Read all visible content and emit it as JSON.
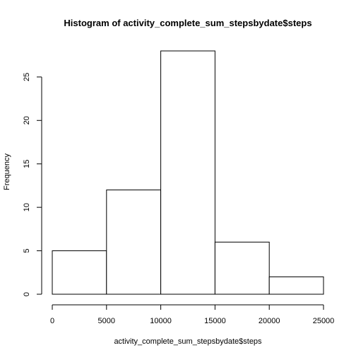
{
  "chart_data": {
    "type": "bar",
    "title": "Histogram of activity_complete_sum_stepsbydate$steps",
    "xlabel": "activity_complete_sum_stepsbydate$steps",
    "ylabel": "Frequency",
    "bins": [
      {
        "start": 0,
        "end": 5000,
        "count": 5
      },
      {
        "start": 5000,
        "end": 10000,
        "count": 12
      },
      {
        "start": 10000,
        "end": 15000,
        "count": 28
      },
      {
        "start": 15000,
        "end": 20000,
        "count": 6
      },
      {
        "start": 20000,
        "end": 25000,
        "count": 2
      }
    ],
    "xlim": [
      0,
      25000
    ],
    "ylim": [
      0,
      28
    ],
    "x_ticks": [
      "0",
      "5000",
      "10000",
      "15000",
      "20000",
      "25000"
    ],
    "y_ticks": [
      "0",
      "5",
      "10",
      "15",
      "20",
      "25"
    ],
    "grid": false,
    "bar_fill": "#ffffff",
    "bar_stroke": "#000000"
  }
}
